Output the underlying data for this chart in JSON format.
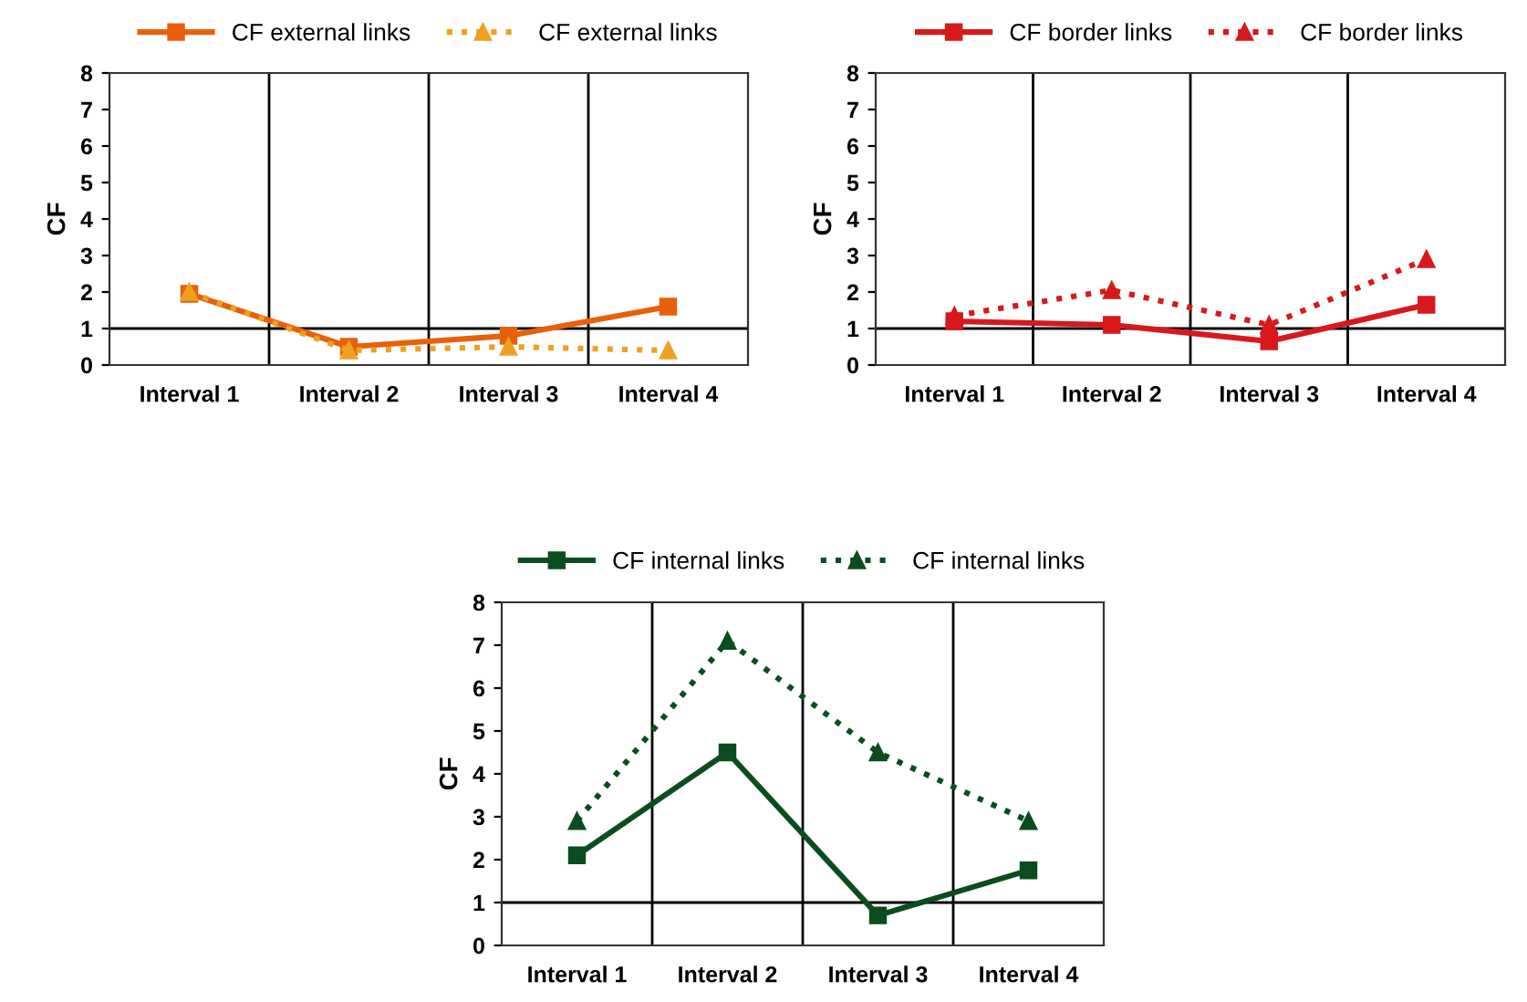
{
  "chart_data": [
    {
      "type": "line",
      "ylabel": "CF",
      "categories": [
        "Interval 1",
        "Interval 2",
        "Interval 3",
        "Interval 4"
      ],
      "ylim": [
        0,
        8
      ],
      "yticks": [
        0,
        1,
        2,
        3,
        4,
        5,
        6,
        7,
        8
      ],
      "grid": "x",
      "legend": "top",
      "ref_lines": [
        {
          "axis": "y",
          "value": 1,
          "color": "#000000"
        }
      ],
      "series": [
        {
          "name": "CF external links",
          "color": "#e8600a",
          "marker": "square",
          "line_style": "solid",
          "values": [
            1.95,
            0.5,
            0.8,
            1.6
          ]
        },
        {
          "name": "CF external links",
          "color": "#f0a020",
          "marker": "triangle",
          "line_style": "dotted",
          "values": [
            2.0,
            0.4,
            0.5,
            0.4
          ]
        }
      ]
    },
    {
      "type": "line",
      "ylabel": "CF",
      "categories": [
        "Interval 1",
        "Interval 2",
        "Interval 3",
        "Interval 4"
      ],
      "ylim": [
        0,
        8
      ],
      "yticks": [
        0,
        1,
        2,
        3,
        4,
        5,
        6,
        7,
        8
      ],
      "grid": "x",
      "legend": "top",
      "ref_lines": [
        {
          "axis": "y",
          "value": 1,
          "color": "#000000"
        }
      ],
      "series": [
        {
          "name": "CF border links",
          "color": "#d7191c",
          "marker": "square",
          "line_style": "solid",
          "values": [
            1.2,
            1.1,
            0.65,
            1.65
          ]
        },
        {
          "name": "CF border links",
          "color": "#d7191c",
          "marker": "triangle",
          "line_style": "dotted",
          "values": [
            1.35,
            2.05,
            1.1,
            2.9
          ]
        }
      ]
    },
    {
      "type": "line",
      "ylabel": "CF",
      "categories": [
        "Interval 1",
        "Interval 2",
        "Interval 3",
        "Interval 4"
      ],
      "ylim": [
        0,
        8
      ],
      "yticks": [
        0,
        1,
        2,
        3,
        4,
        5,
        6,
        7,
        8
      ],
      "grid": "x",
      "legend": "top",
      "ref_lines": [
        {
          "axis": "y",
          "value": 1,
          "color": "#000000"
        }
      ],
      "series": [
        {
          "name": "CF internal links",
          "color": "#0b4d1e",
          "marker": "square",
          "line_style": "solid",
          "values": [
            2.1,
            4.5,
            0.7,
            1.75
          ]
        },
        {
          "name": "CF internal links",
          "color": "#0b4d1e",
          "marker": "triangle",
          "line_style": "dotted",
          "values": [
            2.9,
            7.1,
            4.5,
            2.9
          ]
        }
      ]
    }
  ]
}
